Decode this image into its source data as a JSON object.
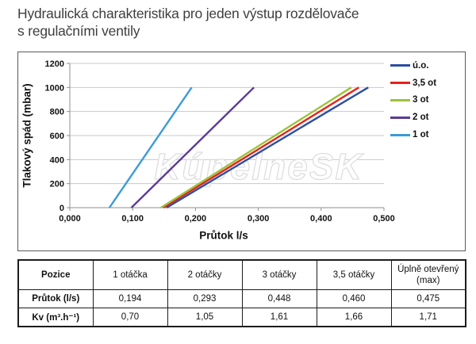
{
  "page": {
    "title_line1": "Hydraulická charakteristika pro jeden výstup rozdělovače",
    "title_line2": "s regulačními ventily",
    "watermark": "KúpelneSK"
  },
  "chart_data": {
    "type": "line",
    "title": "",
    "xlabel": "Průtok l/s",
    "ylabel": "Tlakový spád (mbar)",
    "xlim": [
      0,
      0.5
    ],
    "ylim": [
      0,
      1200
    ],
    "x_tick_labels": [
      "0,000",
      "0,100",
      "0,200",
      "0,300",
      "0,400",
      "0,500"
    ],
    "y_tick_labels": [
      "0",
      "200",
      "400",
      "600",
      "800",
      "1000",
      "1200"
    ],
    "grid": true,
    "legend_position": "right-inside",
    "series": [
      {
        "name": "ú.o.",
        "color": "#2B4EA2",
        "points": [
          [
            0.154,
            0
          ],
          [
            0.475,
            1000
          ]
        ]
      },
      {
        "name": "3,5 ot",
        "color": "#E4231B",
        "points": [
          [
            0.149,
            0
          ],
          [
            0.46,
            1000
          ]
        ]
      },
      {
        "name": "3 ot",
        "color": "#9CC23C",
        "points": [
          [
            0.145,
            0
          ],
          [
            0.448,
            1000
          ]
        ]
      },
      {
        "name": "2 ot",
        "color": "#5C3B97",
        "points": [
          [
            0.098,
            0
          ],
          [
            0.293,
            1000
          ]
        ]
      },
      {
        "name": "1 ot",
        "color": "#3C9BD8",
        "points": [
          [
            0.063,
            0
          ],
          [
            0.194,
            1000
          ]
        ]
      }
    ]
  },
  "table": {
    "headers": [
      "Pozice",
      "1 otáčka",
      "2 otáčky",
      "3 otáčky",
      "3,5 otáčky",
      "Úplně otevřený (max)"
    ],
    "rows": [
      {
        "label": "Průtok (l/s)",
        "values": [
          "0,194",
          "0,293",
          "0,448",
          "0,460",
          "0,475"
        ]
      },
      {
        "label": "Kv (m³.h⁻¹)",
        "values": [
          "0,70",
          "1,05",
          "1,61",
          "1,66",
          "1,71"
        ]
      }
    ]
  }
}
